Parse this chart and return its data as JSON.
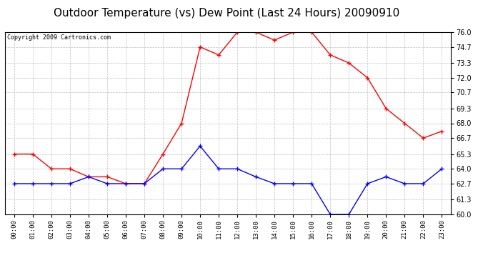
{
  "title": "Outdoor Temperature (vs) Dew Point (Last 24 Hours) 20090910",
  "copyright_text": "Copyright 2009 Cartronics.com",
  "x_labels": [
    "00:00",
    "01:00",
    "02:00",
    "03:00",
    "04:00",
    "05:00",
    "06:00",
    "07:00",
    "08:00",
    "09:00",
    "10:00",
    "11:00",
    "12:00",
    "13:00",
    "14:00",
    "15:00",
    "16:00",
    "17:00",
    "18:00",
    "19:00",
    "20:00",
    "21:00",
    "22:00",
    "23:00"
  ],
  "temp_data": [
    65.3,
    65.3,
    64.0,
    64.0,
    63.3,
    63.3,
    62.7,
    62.7,
    65.3,
    68.0,
    74.7,
    74.0,
    76.0,
    76.0,
    75.3,
    76.0,
    76.0,
    74.0,
    73.3,
    72.0,
    69.3,
    68.0,
    66.7,
    67.3
  ],
  "dew_data": [
    62.7,
    62.7,
    62.7,
    62.7,
    63.3,
    62.7,
    62.7,
    62.7,
    64.0,
    64.0,
    66.0,
    64.0,
    64.0,
    63.3,
    62.7,
    62.7,
    62.7,
    60.0,
    60.0,
    62.7,
    63.3,
    62.7,
    62.7,
    64.0
  ],
  "temp_color": "#ff0000",
  "dew_color": "#0000ff",
  "bg_color": "#ffffff",
  "plot_bg_color": "#ffffff",
  "grid_color": "#c0c0c0",
  "ylim": [
    60.0,
    76.0
  ],
  "yticks": [
    60.0,
    61.3,
    62.7,
    64.0,
    65.3,
    66.7,
    68.0,
    69.3,
    70.7,
    72.0,
    73.3,
    74.7,
    76.0
  ],
  "title_fontsize": 11,
  "copyright_fontsize": 6,
  "marker": "+"
}
